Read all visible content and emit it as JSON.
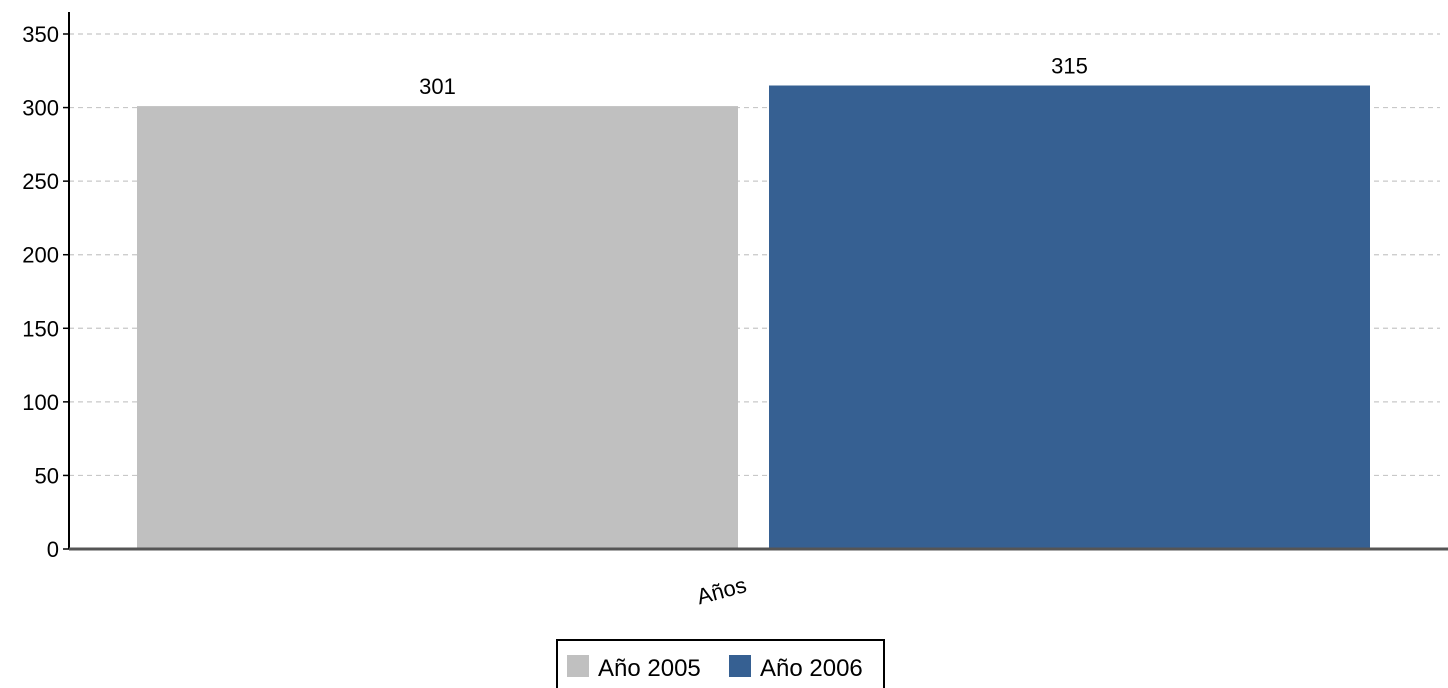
{
  "chart_data": {
    "type": "bar",
    "categories": [
      "Años"
    ],
    "series": [
      {
        "name": "Año 2005",
        "values": [
          301
        ],
        "color": "#c0c0c0"
      },
      {
        "name": "Año 2006",
        "values": [
          315
        ],
        "color": "#366092"
      }
    ],
    "title": "",
    "xlabel": "",
    "ylabel": "",
    "ylim": [
      0,
      350
    ],
    "yticks": [
      0,
      50,
      100,
      150,
      200,
      250,
      300,
      350
    ],
    "grid": true,
    "legend_position": "bottom-center"
  }
}
